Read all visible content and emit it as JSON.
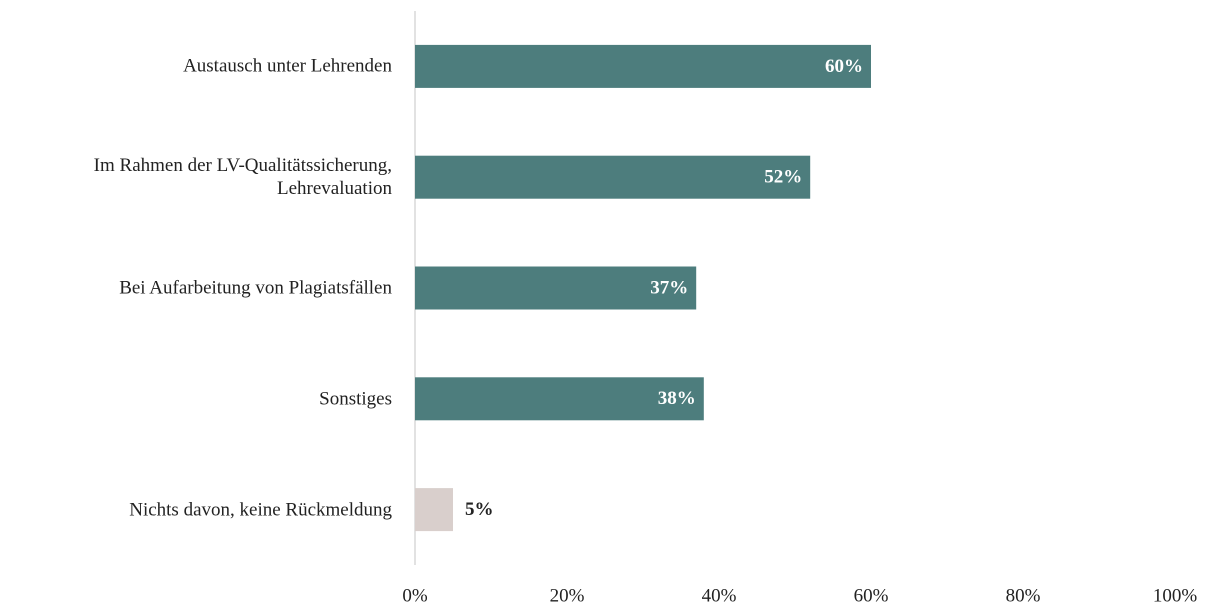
{
  "chart_data": {
    "type": "hbar",
    "categories": [
      "Austausch unter Lehrenden",
      "Im Rahmen der LV-Qualitätssicherung,\nLehrevaluation",
      "Bei Aufarbeitung von Plagiatsfällen",
      "Sonstiges",
      "Nichts davon, keine Rückmeldung"
    ],
    "values": [
      60,
      52,
      37,
      38,
      5
    ],
    "value_labels": [
      "60%",
      "52%",
      "37%",
      "38%",
      "5%"
    ],
    "colors": [
      "#4d7d7d",
      "#4d7d7d",
      "#4d7d7d",
      "#4d7d7d",
      "#d9cfcc"
    ],
    "xlim": [
      0,
      100
    ],
    "xticks": [
      {
        "value": 0,
        "label": "0%"
      },
      {
        "value": 20,
        "label": "20%"
      },
      {
        "value": 40,
        "label": "40%"
      },
      {
        "value": 60,
        "label": "60%"
      },
      {
        "value": 80,
        "label": "80%"
      },
      {
        "value": 100,
        "label": "100%"
      }
    ],
    "grid": false
  }
}
